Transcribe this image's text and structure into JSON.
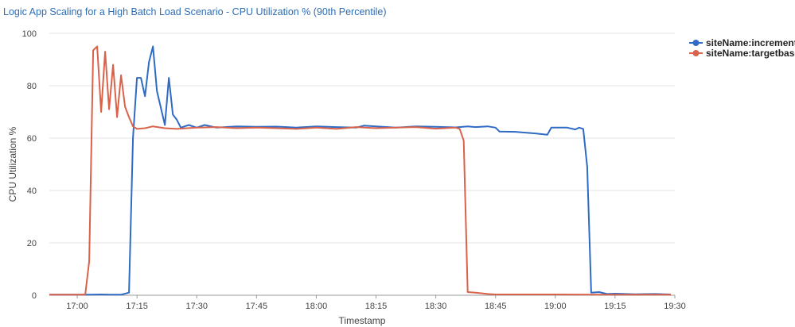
{
  "chart_data": {
    "type": "line",
    "title": "Logic App Scaling for a High Batch Load Scenario - CPU Utilization % (90th Percentile)",
    "xlabel": "Timestamp",
    "ylabel": "CPU Utilization %",
    "ylim": [
      0,
      100
    ],
    "yticks": [
      0,
      20,
      40,
      60,
      80,
      100
    ],
    "xlim": [
      "16:53",
      "19:30"
    ],
    "xticks": [
      "17:00",
      "17:15",
      "17:30",
      "17:45",
      "18:00",
      "18:15",
      "18:30",
      "18:45",
      "19:00",
      "19:15",
      "19:30"
    ],
    "grid": "horizontal",
    "legend": "right",
    "series": [
      {
        "name": "siteName:incremental:",
        "color": "#2f6bc4",
        "points": [
          [
            "16:53",
            0.2
          ],
          [
            "16:58",
            0.2
          ],
          [
            "17:03",
            0.2
          ],
          [
            "17:06",
            0.3
          ],
          [
            "17:08",
            0.2
          ],
          [
            "17:11",
            0.2
          ],
          [
            "17:13",
            1
          ],
          [
            "17:14",
            60
          ],
          [
            "17:15",
            83
          ],
          [
            "17:16",
            83
          ],
          [
            "17:17",
            76
          ],
          [
            "17:18",
            89
          ],
          [
            "17:19",
            95
          ],
          [
            "17:20",
            78
          ],
          [
            "17:22",
            65
          ],
          [
            "17:23",
            83
          ],
          [
            "17:24",
            69
          ],
          [
            "17:25",
            67
          ],
          [
            "17:26",
            64
          ],
          [
            "17:28",
            65
          ],
          [
            "17:30",
            64
          ],
          [
            "17:32",
            65
          ],
          [
            "17:35",
            64
          ],
          [
            "17:40",
            64.5
          ],
          [
            "17:45",
            64.3
          ],
          [
            "17:50",
            64.4
          ],
          [
            "17:55",
            64
          ],
          [
            "18:00",
            64.5
          ],
          [
            "18:05",
            64.2
          ],
          [
            "18:10",
            64
          ],
          [
            "18:12",
            64.8
          ],
          [
            "18:15",
            64.5
          ],
          [
            "18:20",
            64
          ],
          [
            "18:25",
            64.5
          ],
          [
            "18:30",
            64.3
          ],
          [
            "18:35",
            64.1
          ],
          [
            "18:38",
            64.5
          ],
          [
            "18:40",
            64.2
          ],
          [
            "18:43",
            64.5
          ],
          [
            "18:45",
            64
          ],
          [
            "18:46",
            62.5
          ],
          [
            "18:50",
            62.4
          ],
          [
            "18:55",
            61.8
          ],
          [
            "18:58",
            61.3
          ],
          [
            "18:59",
            64
          ],
          [
            "19:03",
            64
          ],
          [
            "19:05",
            63.3
          ],
          [
            "19:06",
            64
          ],
          [
            "19:07",
            63.5
          ],
          [
            "19:08",
            49
          ],
          [
            "19:09",
            1
          ],
          [
            "19:11",
            1.2
          ],
          [
            "19:13",
            0.5
          ],
          [
            "19:15",
            0.6
          ],
          [
            "19:20",
            0.4
          ],
          [
            "19:25",
            0.5
          ],
          [
            "19:29",
            0.3
          ]
        ]
      },
      {
        "name": "siteName:targetbased:",
        "color": "#d9624a",
        "points": [
          [
            "16:53",
            0.2
          ],
          [
            "16:58",
            0.2
          ],
          [
            "17:02",
            0.2
          ],
          [
            "17:03",
            13
          ],
          [
            "17:04",
            93.5
          ],
          [
            "17:05",
            95
          ],
          [
            "17:06",
            70
          ],
          [
            "17:07",
            93
          ],
          [
            "17:08",
            71
          ],
          [
            "17:09",
            88
          ],
          [
            "17:10",
            68
          ],
          [
            "17:11",
            84
          ],
          [
            "17:12",
            72
          ],
          [
            "17:13",
            68
          ],
          [
            "17:14",
            64.5
          ],
          [
            "17:15",
            63.5
          ],
          [
            "17:17",
            63.8
          ],
          [
            "17:19",
            64.5
          ],
          [
            "17:22",
            63.8
          ],
          [
            "17:25",
            63.5
          ],
          [
            "17:30",
            64
          ],
          [
            "17:35",
            64.2
          ],
          [
            "17:40",
            63.8
          ],
          [
            "17:45",
            64
          ],
          [
            "17:50",
            63.8
          ],
          [
            "17:55",
            63.5
          ],
          [
            "18:00",
            64
          ],
          [
            "18:05",
            63.5
          ],
          [
            "18:10",
            64.2
          ],
          [
            "18:15",
            63.8
          ],
          [
            "18:20",
            64
          ],
          [
            "18:25",
            64.2
          ],
          [
            "18:30",
            63.6
          ],
          [
            "18:35",
            64
          ],
          [
            "18:36",
            63.5
          ],
          [
            "18:37",
            59
          ],
          [
            "18:38",
            1.2
          ],
          [
            "18:40",
            1
          ],
          [
            "18:43",
            0.5
          ],
          [
            "18:45",
            0.3
          ],
          [
            "18:50",
            0.3
          ],
          [
            "19:00",
            0.3
          ],
          [
            "19:10",
            0.2
          ],
          [
            "19:20",
            0.2
          ],
          [
            "19:29",
            0.2
          ]
        ]
      }
    ]
  }
}
